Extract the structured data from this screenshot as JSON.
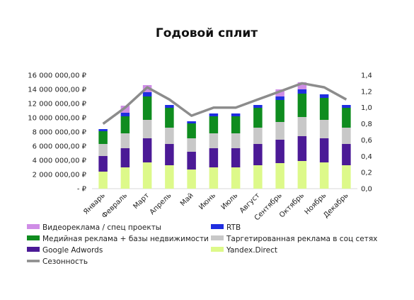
{
  "chart_data": {
    "type": "bar",
    "title": "Годовой сплит",
    "categories": [
      "Январь",
      "Февраль",
      "Март",
      "Апрель",
      "Май",
      "Июнь",
      "Июль",
      "Август",
      "Сентябрь",
      "Октябрь",
      "Ноябрь",
      "Декабрь"
    ],
    "y_left": {
      "ylim": [
        0,
        16000000
      ],
      "ticks": [
        0,
        2000000,
        4000000,
        6000000,
        8000000,
        10000000,
        12000000,
        14000000,
        16000000
      ],
      "tick_labels": [
        "-   ₽",
        "2 000 000,00 ₽",
        "4 000 000,00 ₽",
        "6 000 000,00 ₽",
        "8 000 000,00 ₽",
        "10 000 000,00 ₽",
        "12 000 000,00 ₽",
        "14 000 000,00 ₽",
        "16 000 000,00 ₽"
      ]
    },
    "y_right": {
      "ylim": [
        0,
        1.4
      ],
      "ticks": [
        0,
        0.2,
        0.4,
        0.6,
        0.8,
        1.0,
        1.2,
        1.4
      ],
      "tick_labels": [
        "0,0",
        "0,2",
        "0,4",
        "0,6",
        "0,8",
        "1,0",
        "1,2",
        "1,4"
      ]
    },
    "series": [
      {
        "name": "Yandex.Direct",
        "kind": "bar",
        "axis": "left",
        "color": "#ddf98a",
        "values": [
          2400000,
          3000000,
          3700000,
          3300000,
          2700000,
          3000000,
          3000000,
          3300000,
          3600000,
          3900000,
          3700000,
          3300000
        ]
      },
      {
        "name": "Google Adwords",
        "kind": "bar",
        "axis": "left",
        "color": "#4b1a96",
        "values": [
          2200000,
          2700000,
          3400000,
          3000000,
          2500000,
          2700000,
          2700000,
          3000000,
          3300000,
          3500000,
          3400000,
          3000000
        ]
      },
      {
        "name": "Таргетированная реклама в соц сетях",
        "kind": "bar",
        "axis": "left",
        "color": "#c8c8c8",
        "values": [
          1700000,
          2100000,
          2600000,
          2300000,
          1900000,
          2100000,
          2100000,
          2300000,
          2500000,
          2700000,
          2600000,
          2300000
        ]
      },
      {
        "name": "Медийная реклама + базы недвижимости",
        "kind": "bar",
        "axis": "left",
        "color": "#0f8c1f",
        "values": [
          1800000,
          2400000,
          3300000,
          2800000,
          2100000,
          2400000,
          2400000,
          2800000,
          3100000,
          3300000,
          3100000,
          2800000
        ]
      },
      {
        "name": "RTB",
        "kind": "bar",
        "axis": "left",
        "color": "#1f2ee0",
        "values": [
          300000,
          500000,
          600000,
          400000,
          300000,
          400000,
          400000,
          400000,
          500000,
          600000,
          500000,
          400000
        ]
      },
      {
        "name": "Видеореклама / спец проекты",
        "kind": "bar",
        "axis": "left",
        "color": "#cf8de6",
        "values": [
          0,
          1000000,
          1000000,
          0,
          0,
          0,
          0,
          0,
          1000000,
          1000000,
          0,
          0
        ]
      },
      {
        "name": "Сезонность",
        "kind": "line",
        "axis": "right",
        "color": "#8c8c8c",
        "values": [
          0.8,
          1.0,
          1.25,
          1.1,
          0.9,
          1.0,
          1.0,
          1.1,
          1.2,
          1.3,
          1.25,
          1.1
        ]
      }
    ],
    "legend": {
      "placement": "bottom",
      "order": [
        "Видеореклама / спец проекты",
        "RTB",
        "Медийная реклама + базы недвижимости",
        "Таргетированная реклама в соц сетях",
        "Google Adwords",
        "Yandex.Direct",
        "Сезонность"
      ]
    },
    "grid": false
  }
}
